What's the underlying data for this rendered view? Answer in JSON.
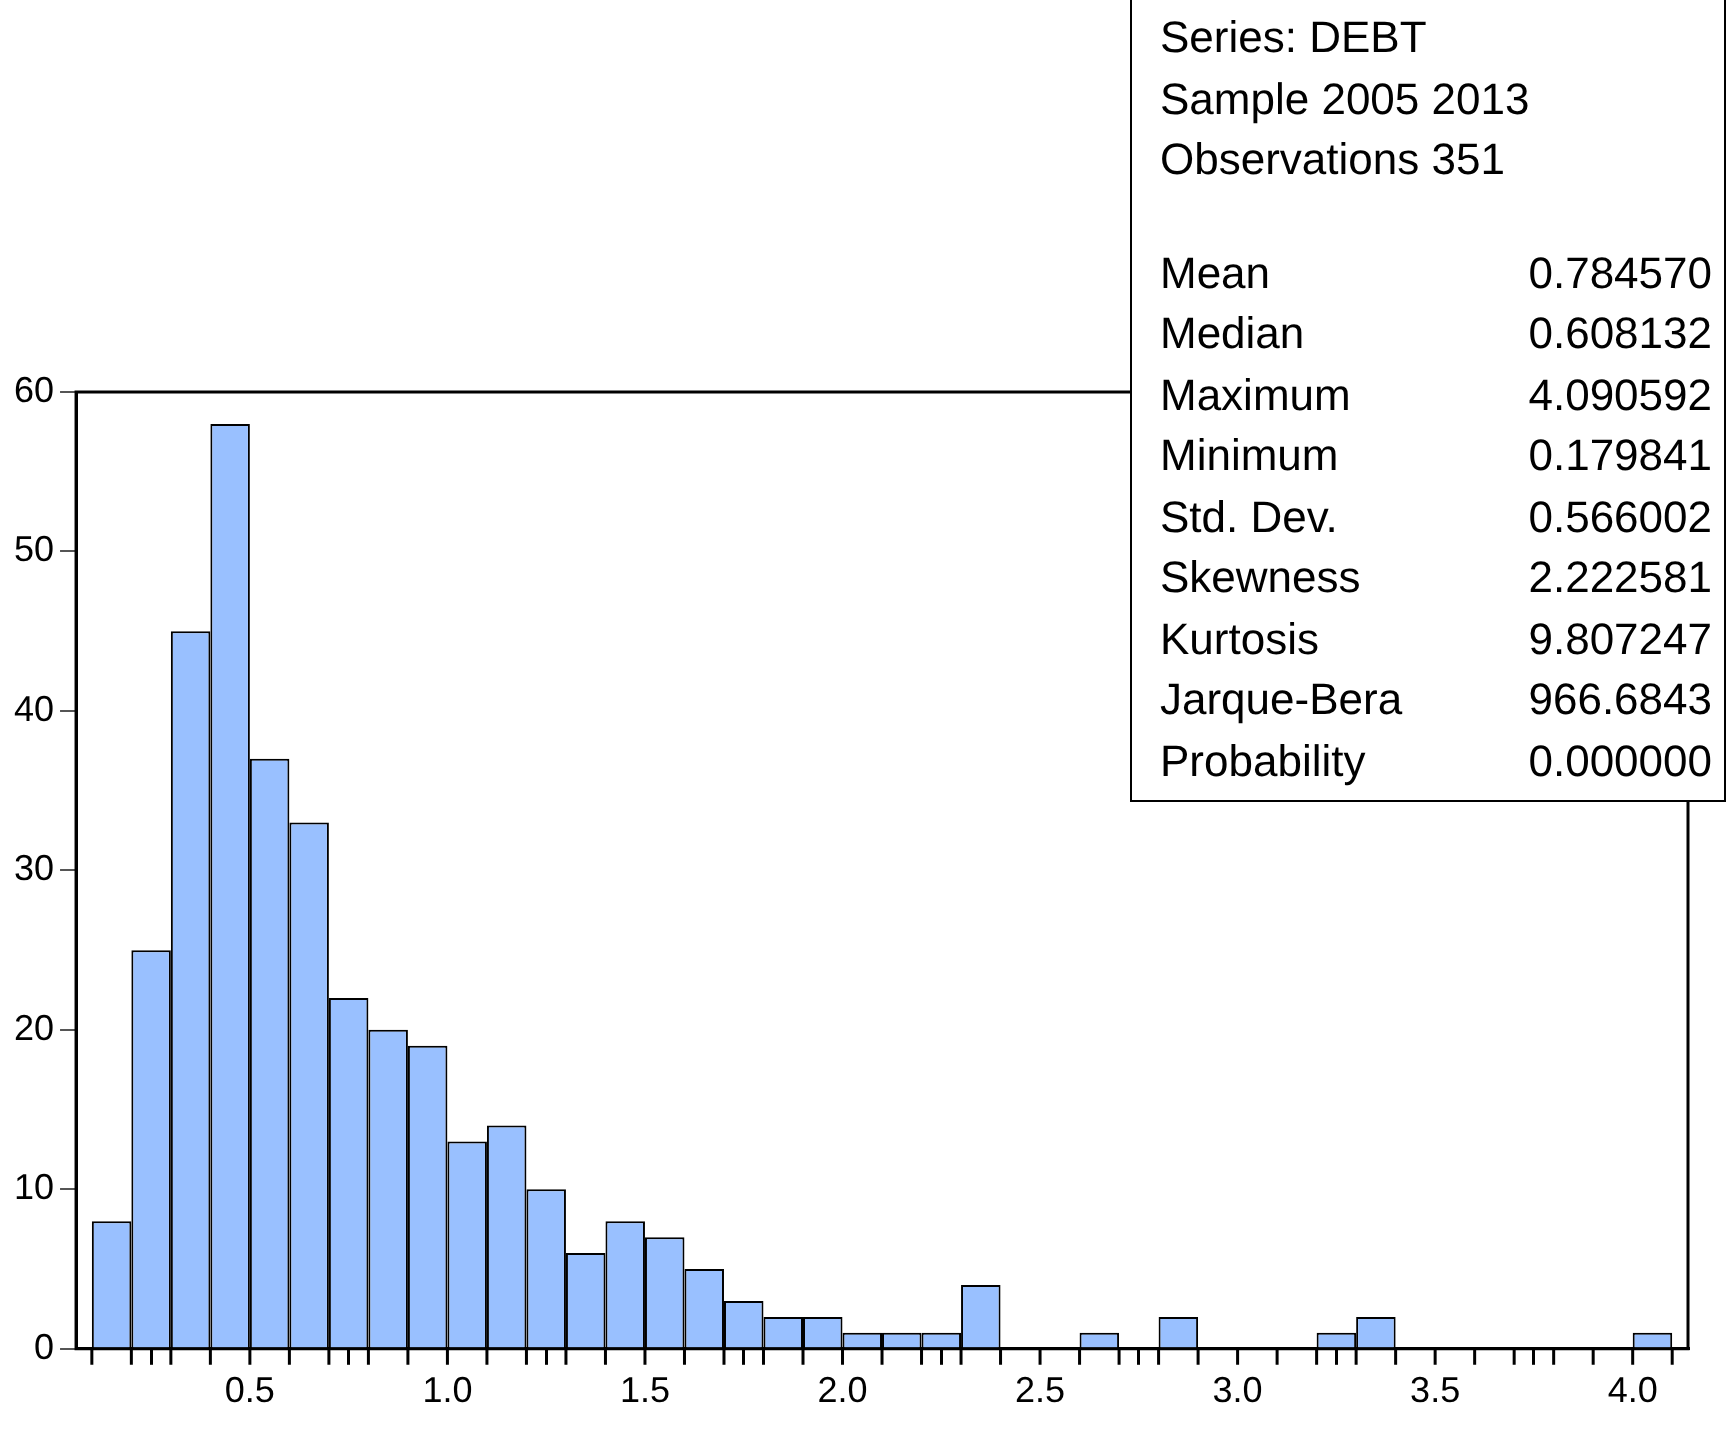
{
  "chart_data": {
    "type": "histogram",
    "bins": [
      0.1,
      0.2,
      0.3,
      0.4,
      0.5,
      0.6,
      0.7,
      0.8,
      0.9,
      1.0,
      1.1,
      1.2,
      1.3,
      1.4,
      1.5,
      1.6,
      1.7,
      1.8,
      1.9,
      2.0,
      2.1,
      2.2,
      2.3,
      2.4,
      2.5,
      2.6,
      2.7,
      2.8,
      2.9,
      3.0,
      3.1,
      3.2,
      3.3,
      3.4,
      3.5,
      3.6,
      3.7,
      3.8,
      3.9,
      4.0,
      4.1
    ],
    "values": [
      8,
      25,
      45,
      58,
      37,
      33,
      22,
      20,
      19,
      13,
      14,
      10,
      6,
      8,
      7,
      5,
      3,
      2,
      2,
      1,
      1,
      1,
      4,
      0,
      0,
      1,
      0,
      2,
      0,
      0,
      0,
      1,
      2,
      0,
      0,
      0,
      0,
      0,
      0,
      1
    ],
    "color": "#99c0ff",
    "xlim": [
      0.06,
      4.14
    ],
    "xticks": [
      {
        "value": 0.5,
        "label": "0.5"
      },
      {
        "value": 1.0,
        "label": "1.0"
      },
      {
        "value": 1.5,
        "label": "1.5"
      },
      {
        "value": 2.0,
        "label": "2.0"
      },
      {
        "value": 2.5,
        "label": "2.5"
      },
      {
        "value": 3.0,
        "label": "3.0"
      },
      {
        "value": 3.5,
        "label": "3.5"
      },
      {
        "value": 4.0,
        "label": "4.0"
      }
    ],
    "ylim": [
      0,
      60
    ],
    "yticks": [
      0,
      10,
      20,
      30,
      40,
      50,
      60
    ],
    "grid": false,
    "annotations": [
      "Series: DEBT",
      "Sample 2005 2013",
      "Observations 351",
      "Mean\t0.784570",
      "Median\t0.608132",
      "Maximum\t4.090592",
      "Minimum\t0.179841",
      "Std. Dev.\t0.566002",
      "Skewness\t2.222581",
      "Kurtosis\t9.807247",
      "Jarque-Bera\t966.6843",
      "Probability\t0.000000"
    ]
  }
}
